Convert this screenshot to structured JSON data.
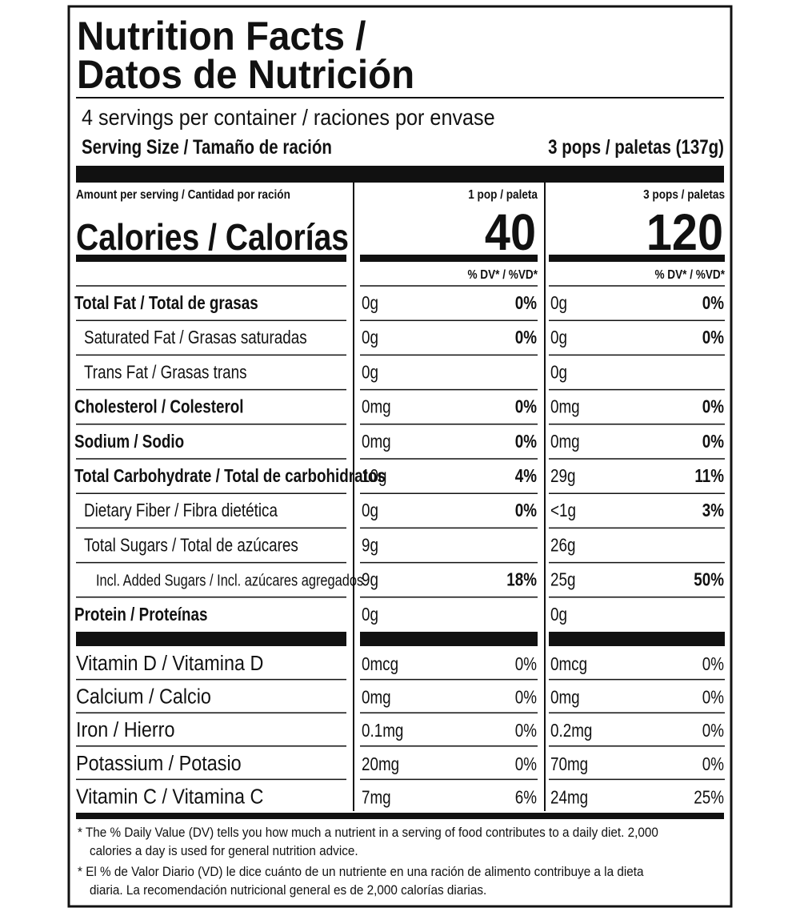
{
  "header": {
    "title_line1": "Nutrition Facts /",
    "title_line2": "Datos de Nutrición",
    "servings": "4 servings per container / raciones por envase",
    "serving_size_label": "Serving Size / Tamaño de ración",
    "serving_size_value": "3 pops / paletas (137g)"
  },
  "calories": {
    "amount_label": "Amount per serving / Cantidad por ración",
    "label": "Calories / Calorías",
    "columns": [
      {
        "heading": "1 pop / paleta",
        "value": 40,
        "dv_heading": "% DV* / %VD*"
      },
      {
        "heading": "3 pops / paletas",
        "value": 120,
        "dv_heading": "% DV* / %VD*"
      }
    ]
  },
  "nutrients": [
    {
      "name": "Total Fat / Total de grasas",
      "style": "bold",
      "columns": [
        {
          "amount": "0g",
          "dv": "0%"
        },
        {
          "amount": "0g",
          "dv": "0%"
        }
      ]
    },
    {
      "name": "Saturated Fat / Grasas saturadas",
      "style": "sub",
      "columns": [
        {
          "amount": "0g",
          "dv": "0%"
        },
        {
          "amount": "0g",
          "dv": "0%"
        }
      ]
    },
    {
      "name": "Trans Fat / Grasas trans",
      "style": "sub",
      "columns": [
        {
          "amount": "0g"
        },
        {
          "amount": "0g"
        }
      ]
    },
    {
      "name": "Cholesterol / Colesterol",
      "style": "bold",
      "columns": [
        {
          "amount": "0mg",
          "dv": "0%"
        },
        {
          "amount": "0mg",
          "dv": "0%"
        }
      ]
    },
    {
      "name": "Sodium / Sodio",
      "style": "bold",
      "columns": [
        {
          "amount": "0mg",
          "dv": "0%"
        },
        {
          "amount": "0mg",
          "dv": "0%"
        }
      ]
    },
    {
      "name": "Total Carbohydrate / Total de carbohidratos",
      "style": "bold",
      "columns": [
        {
          "amount": "10g",
          "dv": "4%"
        },
        {
          "amount": "29g",
          "dv": "11%"
        }
      ]
    },
    {
      "name": "Dietary Fiber / Fibra dietética",
      "style": "sub",
      "columns": [
        {
          "amount": "0g",
          "dv": "0%"
        },
        {
          "amount": "<1g",
          "dv": "3%"
        }
      ]
    },
    {
      "name": "Total Sugars / Total de azúcares",
      "style": "sub",
      "columns": [
        {
          "amount": "9g"
        },
        {
          "amount": "26g"
        }
      ]
    },
    {
      "name": "Incl. Added Sugars / Incl. azúcares agregados",
      "style": "subsub",
      "columns": [
        {
          "amount": "9g",
          "dv": "18%"
        },
        {
          "amount": "25g",
          "dv": "50%"
        }
      ]
    },
    {
      "name": "Protein / Proteínas",
      "style": "bold",
      "columns": [
        {
          "amount": "0g"
        },
        {
          "amount": "0g"
        }
      ]
    }
  ],
  "vitamins": [
    {
      "name": "Vitamin D / Vitamina D",
      "columns": [
        {
          "amount": "0mcg",
          "dv": "0%"
        },
        {
          "amount": "0mcg",
          "dv": "0%"
        }
      ]
    },
    {
      "name": "Calcium / Calcio",
      "columns": [
        {
          "amount": "0mg",
          "dv": "0%"
        },
        {
          "amount": "0mg",
          "dv": "0%"
        }
      ]
    },
    {
      "name": "Iron / Hierro",
      "columns": [
        {
          "amount": "0.1mg",
          "dv": "0%"
        },
        {
          "amount": "0.2mg",
          "dv": "0%"
        }
      ]
    },
    {
      "name": "Potassium / Potasio",
      "columns": [
        {
          "amount": "20mg",
          "dv": "0%"
        },
        {
          "amount": "70mg",
          "dv": "0%"
        }
      ]
    },
    {
      "name": "Vitamin C / Vitamina C",
      "columns": [
        {
          "amount": "7mg",
          "dv": "6%"
        },
        {
          "amount": "24mg",
          "dv": "25%"
        }
      ]
    }
  ],
  "footnotes": [
    [
      "* The % Daily Value (DV) tells you how much a nutrient in a serving of food contributes to a daily diet. 2,000",
      "calories a day is used for general nutrition advice."
    ],
    [
      "* El % de Valor Diario (VD) le dice cuánto de un nutriente en una ración de alimento contribuye a la dieta",
      "diaria. La recomendación nutricional general es de 2,000 calorías diarias."
    ]
  ]
}
